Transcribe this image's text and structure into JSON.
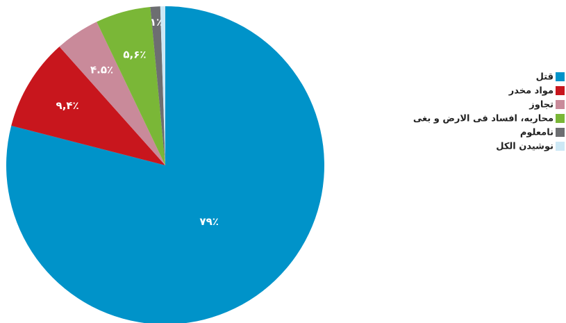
{
  "chart_data": {
    "type": "pie",
    "categories": [
      "قتل",
      "مواد مخدر",
      "تجاوز",
      "محاربه، افساد فی الارض و بغی",
      "نامعلوم",
      "نوشیدن الکل"
    ],
    "values": [
      79,
      9.4,
      4.5,
      5.6,
      1,
      0.5
    ],
    "value_labels": [
      "۷۹٪",
      "۹,۴٪",
      "۴.۵٪",
      "۵,۶٪",
      "۱٪",
      null
    ],
    "colors": [
      "#0093c9",
      "#c8161d",
      "#c98a9a",
      "#7ab737",
      "#6d6e71",
      "#cde8f5"
    ],
    "legend": "right"
  }
}
